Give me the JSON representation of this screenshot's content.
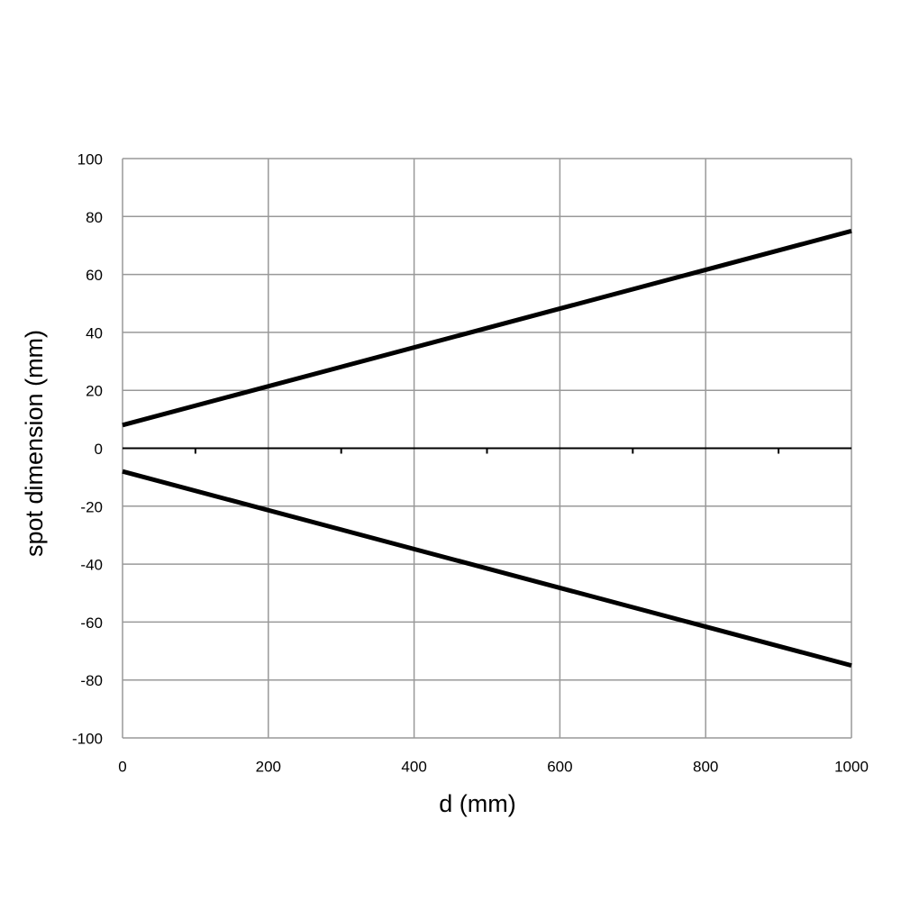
{
  "chart_data": {
    "type": "line",
    "x_label": "d (mm)",
    "y_label": "spot dimension (mm)",
    "x": [
      0,
      1000
    ],
    "series": [
      {
        "color": "#000000",
        "values": [
          8,
          75
        ]
      },
      {
        "color": "#000000",
        "values": [
          -8,
          -75
        ]
      }
    ],
    "xlim": [
      0,
      1000
    ],
    "xticks": [
      0,
      200,
      400,
      600,
      800,
      1000
    ],
    "xminorticks": [
      100,
      300,
      500,
      700,
      900
    ],
    "ylim": [
      -100,
      100
    ],
    "yticks": [
      -100,
      -80,
      -60,
      -40,
      -20,
      0,
      20,
      40,
      60,
      80,
      100
    ],
    "grid": true
  }
}
